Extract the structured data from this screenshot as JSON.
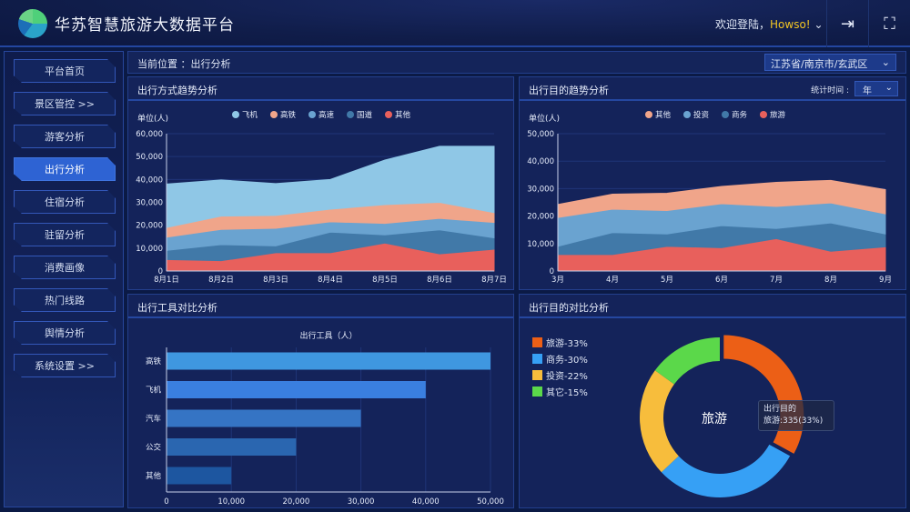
{
  "header": {
    "title": "华苏智慧旅游大数据平台",
    "welcome": "欢迎登陆，",
    "user": "Howso!",
    "logout_icon": "logout-icon",
    "fullscreen_icon": "fullscreen-icon"
  },
  "sidebar": {
    "items": [
      {
        "label": "平台首页"
      },
      {
        "label": "景区管控 >>"
      },
      {
        "label": "游客分析"
      },
      {
        "label": "出行分析",
        "active": true
      },
      {
        "label": "住宿分析"
      },
      {
        "label": "驻留分析"
      },
      {
        "label": "消费画像"
      },
      {
        "label": "热门线路"
      },
      {
        "label": "舆情分析"
      },
      {
        "label": "系统设置 >>"
      }
    ]
  },
  "breadcrumb": {
    "text": "当前位置 ：出行分析",
    "region": "江苏省/南京市/玄武区"
  },
  "panels": {
    "mode_trend": {
      "title": "出行方式趋势分析"
    },
    "purpose_trend": {
      "title": "出行目的趋势分析",
      "stat_label": "统计时间 :",
      "stat_value": "年"
    },
    "tool_compare": {
      "title": "出行工具对比分析"
    },
    "purpose_compare": {
      "title": "出行目的对比分析",
      "center": "旅游",
      "tooltip_title": "出行目的",
      "tooltip_value": "旅游:335(33%)"
    }
  },
  "chart_data": [
    {
      "type": "area",
      "stacked": true,
      "ylabel": "单位(人)",
      "ylim": [
        0,
        60000
      ],
      "yticks": [
        "0",
        "10,000",
        "20,000",
        "30,000",
        "40,000",
        "50,000",
        "60,000"
      ],
      "categories": [
        "8月1日",
        "8月2日",
        "8月3日",
        "8月4日",
        "8月5日",
        "8月6日",
        "8月7日"
      ],
      "legend": "top",
      "series": [
        {
          "name": "其他",
          "color": "#e8605c",
          "values": [
            5000,
            4500,
            8000,
            8000,
            12200,
            7500,
            9500
          ]
        },
        {
          "name": "国道",
          "color": "#4179a8",
          "values": [
            4000,
            7000,
            3000,
            9000,
            3600,
            10500,
            5000
          ]
        },
        {
          "name": "高速",
          "color": "#6aa3d0",
          "values": [
            5800,
            6700,
            7700,
            4500,
            5000,
            5000,
            6700
          ]
        },
        {
          "name": "高铁",
          "color": "#f0a58a",
          "values": [
            4200,
            5800,
            5600,
            5500,
            8200,
            7000,
            4300
          ]
        },
        {
          "name": "飞机",
          "color": "#8fc7e6",
          "values": [
            19000,
            15800,
            13900,
            13000,
            19500,
            24500,
            29000
          ]
        }
      ],
      "legend_order": [
        "飞机",
        "高铁",
        "高速",
        "国道",
        "其他"
      ]
    },
    {
      "type": "area",
      "stacked": true,
      "ylabel": "单位(人)",
      "ylim": [
        0,
        50000
      ],
      "yticks": [
        "0",
        "10,000",
        "20,000",
        "30,000",
        "40,000",
        "50,000"
      ],
      "categories": [
        "3月",
        "4月",
        "5月",
        "6月",
        "7月",
        "8月",
        "9月"
      ],
      "legend": "top",
      "series": [
        {
          "name": "旅游",
          "color": "#e8605c",
          "values": [
            6000,
            6000,
            9000,
            8500,
            11800,
            7200,
            8800
          ]
        },
        {
          "name": "商务",
          "color": "#4179a8",
          "values": [
            3000,
            8000,
            4500,
            8000,
            3700,
            10300,
            4700
          ]
        },
        {
          "name": "投资",
          "color": "#6aa3d0",
          "values": [
            10500,
            8500,
            8500,
            8000,
            8000,
            7300,
            7300
          ]
        },
        {
          "name": "其他",
          "color": "#f0a58a",
          "values": [
            4700,
            5500,
            6300,
            6300,
            8800,
            8200,
            8800
          ]
        }
      ],
      "legend_order": [
        "其他",
        "投资",
        "商务",
        "旅游"
      ]
    },
    {
      "type": "bar",
      "orientation": "horizontal",
      "title": "出行工具（人）",
      "xlim": [
        0,
        50000
      ],
      "xticks": [
        "0",
        "10,000",
        "20,000",
        "30,000",
        "40,000",
        "50,000"
      ],
      "categories": [
        "高铁",
        "飞机",
        "汽车",
        "公交",
        "其他"
      ],
      "values": [
        50000,
        40000,
        30000,
        20000,
        10000
      ],
      "colors": [
        "#3f97e0",
        "#3a7fe0",
        "#3574c4",
        "#2a66b0",
        "#1d56a0"
      ]
    },
    {
      "type": "pie",
      "donut": true,
      "legend": "top-left",
      "labels": [
        "旅游-33%",
        "商务-30%",
        "投资-22%",
        "其它-15%"
      ],
      "values": [
        33,
        30,
        22,
        15
      ],
      "colors": [
        "#ec5f16",
        "#36a0f5",
        "#f7bd3c",
        "#5bd84a"
      ]
    }
  ]
}
